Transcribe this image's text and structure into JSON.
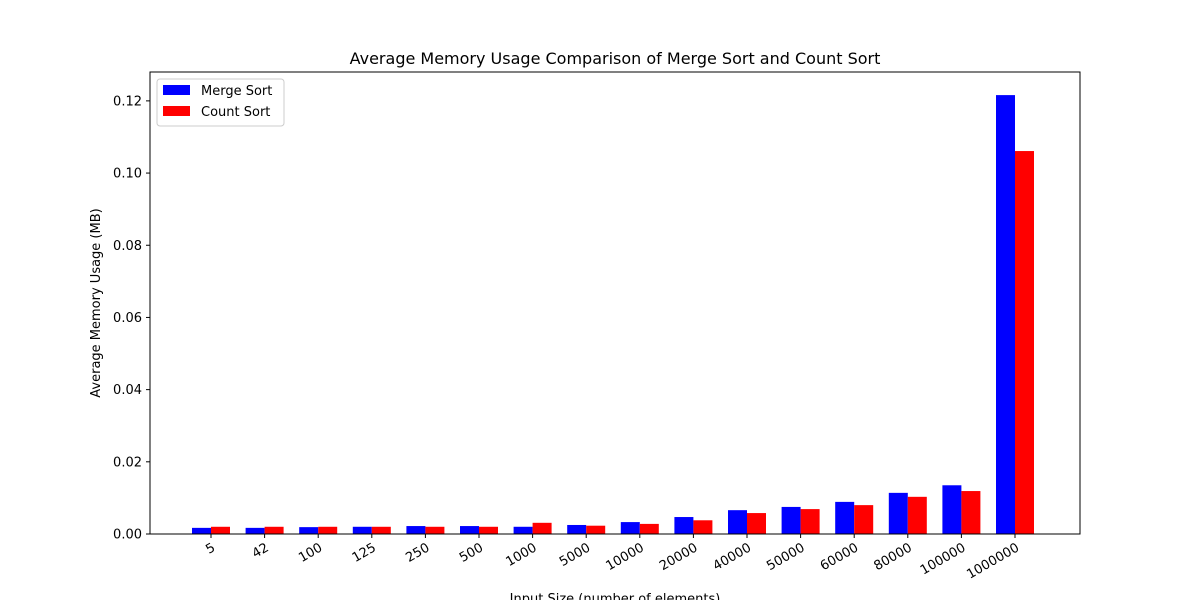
{
  "chart_data": {
    "type": "bar",
    "title": "Average Memory Usage Comparison of Merge Sort and Count Sort",
    "xlabel": "Input Size (number of elements)",
    "ylabel": "Average Memory Usage (MB)",
    "categories": [
      "5",
      "42",
      "100",
      "125",
      "250",
      "500",
      "1000",
      "5000",
      "10000",
      "20000",
      "40000",
      "50000",
      "60000",
      "80000",
      "100000",
      "1000000"
    ],
    "series": [
      {
        "name": "Merge Sort",
        "color": "#0000ff",
        "values": [
          0.0017,
          0.0017,
          0.0019,
          0.002,
          0.0022,
          0.0022,
          0.002,
          0.0025,
          0.0033,
          0.0047,
          0.0066,
          0.0075,
          0.0089,
          0.0114,
          0.0135,
          0.1216
        ]
      },
      {
        "name": "Count Sort",
        "color": "#ff0000",
        "values": [
          0.002,
          0.002,
          0.002,
          0.002,
          0.002,
          0.002,
          0.0031,
          0.0023,
          0.0028,
          0.0038,
          0.0058,
          0.0069,
          0.008,
          0.0103,
          0.0119,
          0.1061
        ]
      }
    ],
    "ylim": [
      0,
      0.128
    ],
    "yticks": [
      "0.00",
      "0.02",
      "0.04",
      "0.06",
      "0.08",
      "0.10",
      "0.12"
    ],
    "legend_position": "top-left",
    "grid": false
  }
}
